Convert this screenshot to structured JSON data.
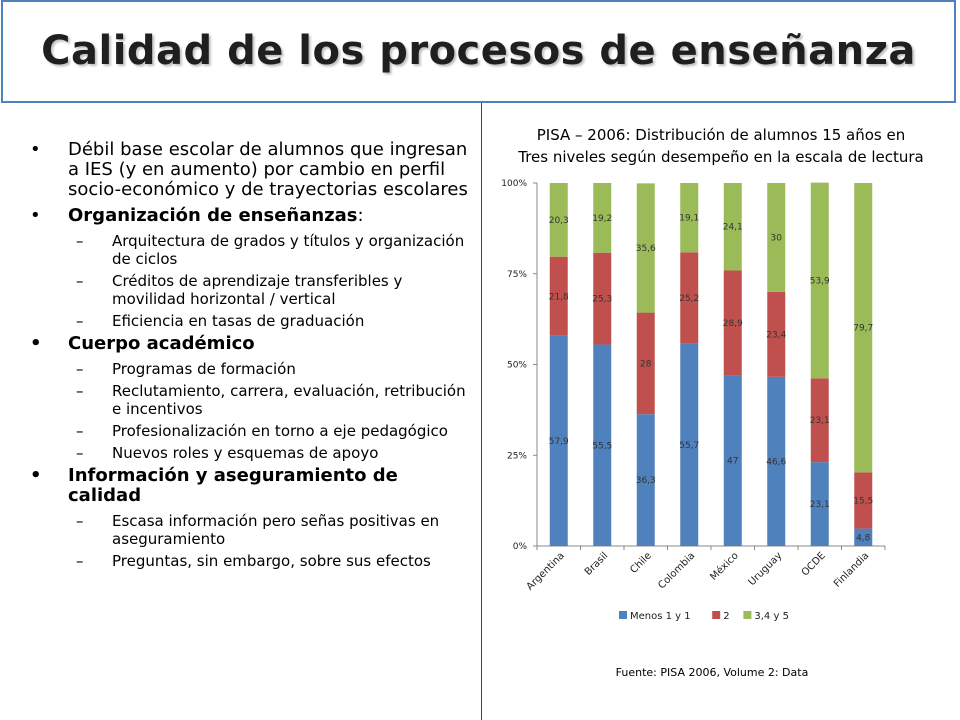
{
  "slide": {
    "title": "Calidad de los procesos de enseñanza",
    "bullets": [
      {
        "text": "Débil base escolar de alumnos que ingresan a IES (y en aumento) por cambio en perfil socio-económico y de trayectorias escolares",
        "bold": false,
        "subs": []
      },
      {
        "label": "Organización de enseñanzas",
        "suffix": ":",
        "bold": false,
        "subs": [
          "Arquitectura de grados y títulos y organización de ciclos",
          "Créditos de aprendizaje transferibles y movilidad horizontal / vertical",
          "Eficiencia en tasas de graduación"
        ]
      },
      {
        "text": "Cuerpo académico",
        "bold": true,
        "subs": [
          "Programas de formación",
          "Reclutamiento, carrera, evaluación, retribución e incentivos",
          "Profesionalización en torno a eje pedagógico",
          "Nuevos roles y esquemas de apoyo"
        ]
      },
      {
        "text": "Información y aseguramiento de calidad",
        "bold": true,
        "subs": [
          "Escasa información pero señas positivas en aseguramiento",
          "Preguntas, sin embargo, sobre sus efectos"
        ]
      }
    ],
    "source": "Fuente: PISA 2006, Volume 2: Data"
  },
  "chart_data": {
    "type": "bar",
    "stacked": true,
    "title_line1": "PISA – 2006: Distribución de alumnos 15 años en",
    "title_line2": "Tres niveles según desempeño en la escala de lectura",
    "categories": [
      "Argentina",
      "Brasil",
      "Chile",
      "Colombia",
      "México",
      "Uruguay",
      "OCDE",
      "Finlandia"
    ],
    "series": [
      {
        "name": "Menos 1 y 1",
        "color": "#4f81bd",
        "values": [
          57.9,
          55.5,
          36.3,
          55.7,
          47,
          46.6,
          23.1,
          4.8
        ],
        "labels": [
          "57,9",
          "55,5",
          "36,3",
          "55,7",
          "47",
          "46,6",
          "23,1",
          "4,8"
        ]
      },
      {
        "name": "2",
        "color": "#c0504d",
        "values": [
          21.8,
          25.3,
          28,
          25.2,
          28.9,
          23.4,
          23.1,
          15.5
        ],
        "labels": [
          "21,8",
          "25,3",
          "28",
          "25,2",
          "28,9",
          "23,4",
          "23,1",
          "15,5"
        ]
      },
      {
        "name": "3,4 y 5",
        "color": "#9bbb59",
        "values": [
          20.3,
          19.2,
          35.6,
          19.1,
          24.1,
          30,
          53.9,
          79.7
        ],
        "labels": [
          "20,3",
          "19,2",
          "35,6",
          "19,1",
          "24,1",
          "30",
          "53,9",
          "79,7"
        ]
      }
    ],
    "ylim": [
      0,
      100
    ],
    "yticks": [
      "0%",
      "25%",
      "50%",
      "75%",
      "100%"
    ],
    "legend_position": "bottom"
  }
}
